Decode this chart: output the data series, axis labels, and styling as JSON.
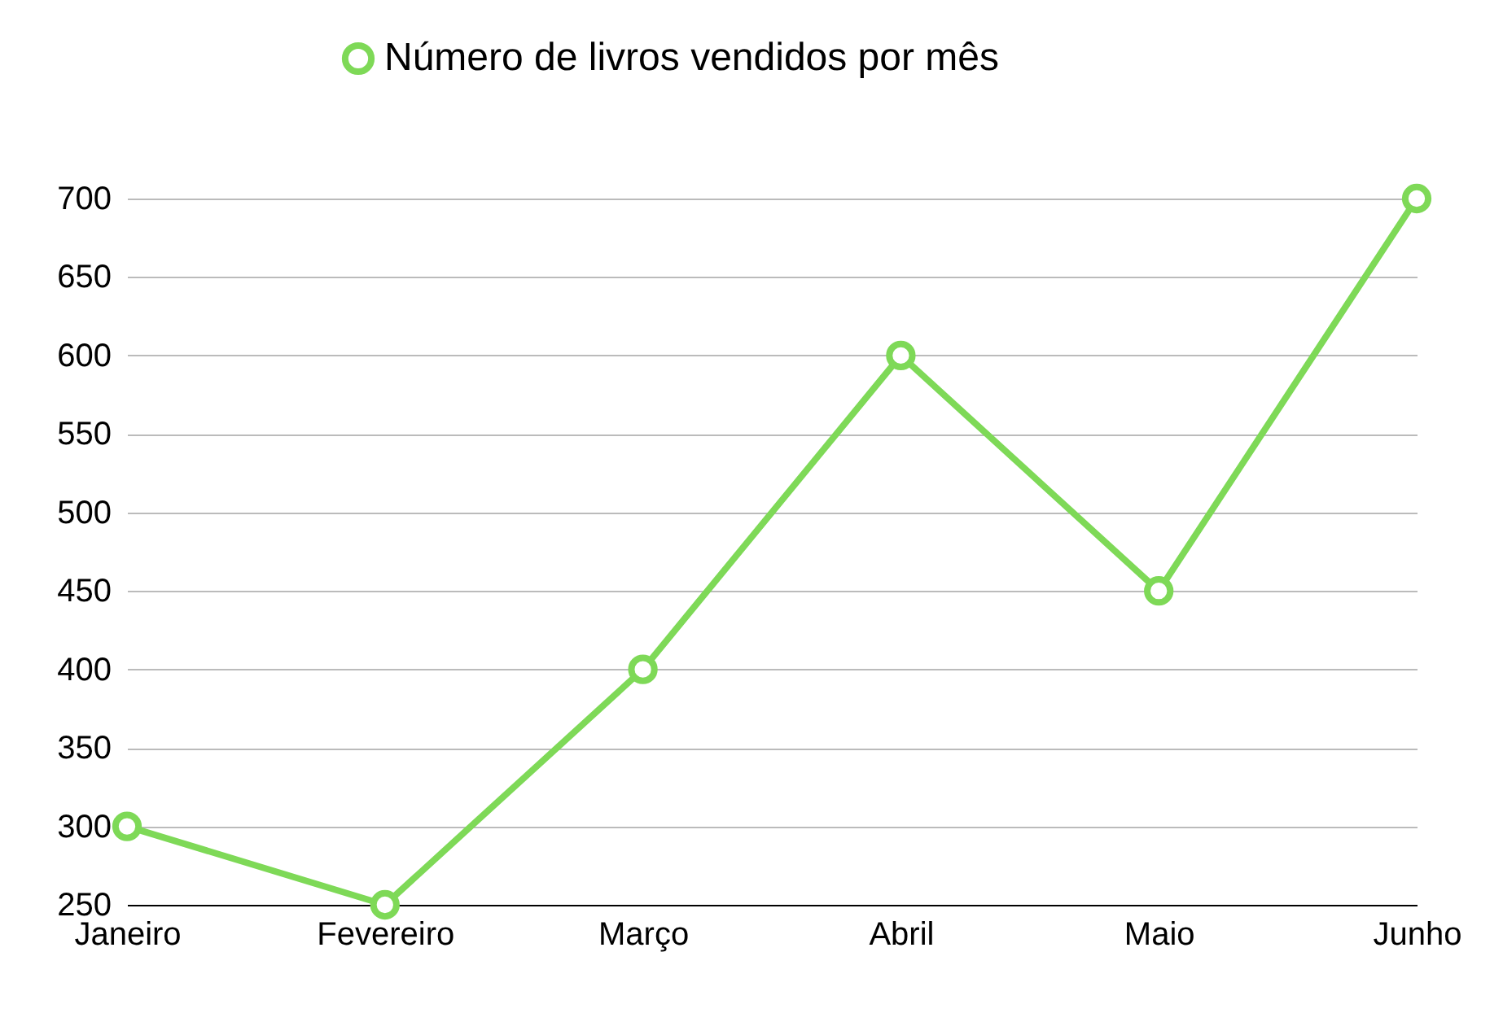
{
  "chart_data": {
    "type": "line",
    "categories": [
      "Janeiro",
      "Fevereiro",
      "Março",
      "Abril",
      "Maio",
      "Junho"
    ],
    "series": [
      {
        "name": "Número de livros vendidos por mês",
        "color": "#7ed957",
        "values": [
          300,
          250,
          400,
          600,
          450,
          700
        ]
      }
    ],
    "ylim": [
      250,
      700
    ],
    "yticks": [
      250,
      300,
      350,
      400,
      450,
      500,
      550,
      600,
      650,
      700
    ],
    "grid": "y",
    "legend": "top",
    "marker": "circle"
  }
}
